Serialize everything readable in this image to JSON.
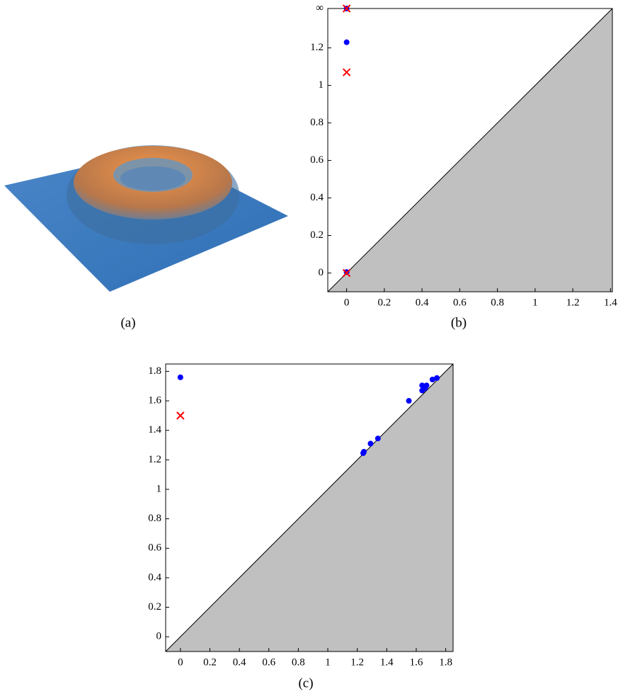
{
  "figure_a": {
    "caption": "(a)"
  },
  "chart_data": [
    {
      "type": "scatter",
      "caption": "(b)",
      "xlim": [
        -0.1,
        1.41
      ],
      "ylim": [
        -0.1,
        1.41
      ],
      "xticks": [
        0,
        0.2,
        0.4,
        0.6,
        0.8,
        1,
        1.2,
        1.4
      ],
      "yticks": [
        0,
        0.2,
        0.4,
        0.6,
        0.8,
        1,
        1.2,
        {
          "value": 1.41,
          "label": "∞"
        }
      ],
      "diagonal_fill": "#c0c0c0",
      "series": [
        {
          "marker": "dot",
          "color": "#0000ff",
          "x": [
            0,
            0,
            0
          ],
          "values": [
            1.41,
            1.23,
            0.005
          ]
        },
        {
          "marker": "cross",
          "color": "#ff0000",
          "x": [
            0,
            0,
            0
          ],
          "values": [
            1.41,
            1.07,
            0
          ]
        }
      ]
    },
    {
      "type": "scatter",
      "caption": "(c)",
      "xlim": [
        -0.1,
        1.85
      ],
      "ylim": [
        -0.1,
        1.85
      ],
      "xticks": [
        0,
        0.2,
        0.4,
        0.6,
        0.8,
        1,
        1.2,
        1.4,
        1.6,
        1.8
      ],
      "yticks": [
        0,
        0.2,
        0.4,
        0.6,
        0.8,
        1,
        1.2,
        1.4,
        1.6,
        1.8
      ],
      "diagonal_fill": "#c0c0c0",
      "series": [
        {
          "marker": "dot",
          "color": "#0000ff",
          "x": [
            0,
            1.24,
            1.245,
            1.29,
            1.34,
            1.55,
            1.64,
            1.64,
            1.66,
            1.67,
            1.71,
            1.74
          ],
          "values": [
            1.76,
            1.245,
            1.255,
            1.31,
            1.345,
            1.6,
            1.67,
            1.705,
            1.685,
            1.705,
            1.745,
            1.755
          ]
        },
        {
          "marker": "cross",
          "color": "#ff0000",
          "x": [
            0
          ],
          "values": [
            1.5
          ]
        }
      ]
    }
  ]
}
